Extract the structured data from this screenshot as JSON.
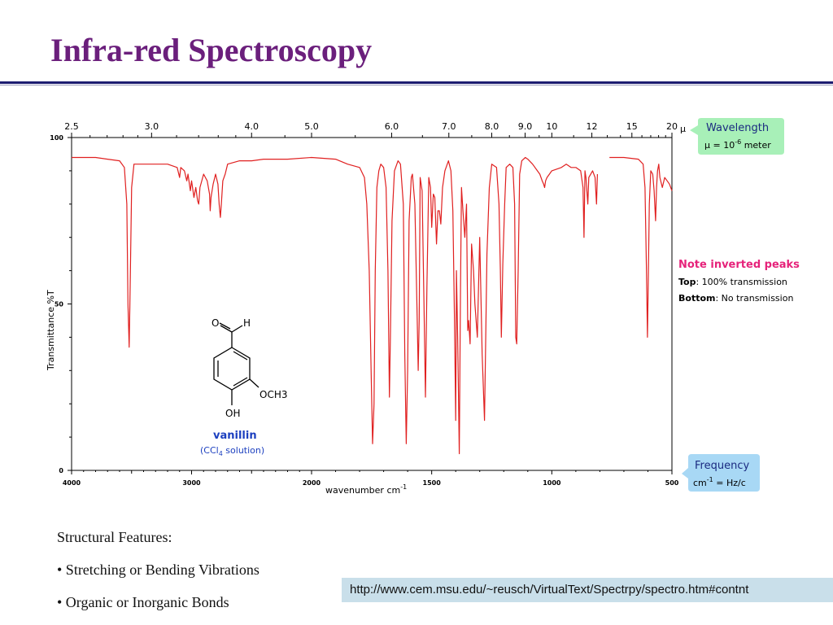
{
  "slide": {
    "title": "Infra-red Spectroscopy",
    "features_heading": "Structural Features:",
    "bullets": [
      "• Stretching or Bending Vibrations",
      "• Organic or Inorganic Bonds"
    ],
    "source_url": "http://www.cem.msu.edu/~reusch/VirtualText/Spectrpy/spectro.htm#contnt"
  },
  "colors": {
    "title": "#6b1f7c",
    "rule": "#1c1c70",
    "spectrum": "#e02020",
    "note": "#e6227a",
    "molecule_label": "#1b3fbf",
    "callout_green": "#a8f0b8",
    "callout_blue": "#a8d8f5",
    "url_box": "#c9dfea"
  },
  "notes": {
    "title": "Note inverted peaks",
    "top_label": "Top",
    "top_text": ": 100% transmission",
    "bottom_label": "Bottom",
    "bottom_text": ": No transmission"
  },
  "callouts": {
    "wavelength_title": "Wavelength",
    "wavelength_formula": "μ = 10",
    "wavelength_exp": "-6",
    "wavelength_unit": " meter",
    "frequency_title": "Frequency",
    "frequency_formula": "cm",
    "frequency_exp": "-1",
    "frequency_unit": " = Hz/c"
  },
  "molecule": {
    "name": "vanillin",
    "solvent_prefix": "(CCl",
    "solvent_sub": "4",
    "solvent_suffix": " solution)",
    "atom_o": "O",
    "atom_h": "H",
    "atom_och3": "OCH3",
    "atom_oh": "OH"
  },
  "chart_data": {
    "type": "line",
    "xlabel": "wavenumber cm",
    "xlabel_exp": "-1",
    "ylabel": "Transmittance %T",
    "xlim": [
      4000,
      500
    ],
    "ylim": [
      0,
      100
    ],
    "x_ticks": [
      4000,
      3000,
      2000,
      1500,
      1000,
      500
    ],
    "y_ticks": [
      0,
      50,
      100
    ],
    "top_axis_unit": "μ",
    "top_ticks": [
      {
        "label": "2.5",
        "um": 2.5
      },
      {
        "label": "3.0",
        "um": 3.0
      },
      {
        "label": "4.0",
        "um": 4.0
      },
      {
        "label": "5.0",
        "um": 5.0
      },
      {
        "label": "6.0",
        "um": 6.0
      },
      {
        "label": "7.0",
        "um": 7.0
      },
      {
        "label": "8.0",
        "um": 8.0
      },
      {
        "label": "9.0",
        "um": 9.0
      },
      {
        "label": "10",
        "um": 10
      },
      {
        "label": "12",
        "um": 12
      },
      {
        "label": "15",
        "um": 15
      },
      {
        "label": "20",
        "um": 20
      }
    ],
    "x_axis_note": "x axis is linear in wavenumber with a scale change at 2000 cm-1",
    "series": [
      {
        "segments": [
          [
            [
              4000,
              94
            ],
            [
              3900,
              94
            ],
            [
              3800,
              94
            ],
            [
              3700,
              93.5
            ],
            [
              3600,
              93
            ],
            [
              3560,
              91
            ],
            [
              3540,
              80
            ],
            [
              3530,
              50
            ],
            [
              3520,
              37
            ],
            [
              3512,
              55
            ],
            [
              3500,
              85
            ],
            [
              3480,
              92
            ],
            [
              3400,
              92
            ],
            [
              3300,
              92
            ],
            [
              3200,
              92
            ],
            [
              3120,
              91
            ],
            [
              3100,
              88
            ],
            [
              3090,
              91
            ],
            [
              3060,
              90
            ],
            [
              3040,
              87
            ],
            [
              3030,
              89
            ],
            [
              3010,
              84
            ],
            [
              3000,
              87
            ],
            [
              2980,
              82
            ],
            [
              2965,
              85
            ],
            [
              2950,
              81
            ],
            [
              2940,
              80
            ],
            [
              2930,
              85
            ],
            [
              2900,
              89
            ],
            [
              2870,
              87
            ],
            [
              2850,
              83
            ],
            [
              2845,
              78
            ],
            [
              2838,
              82
            ],
            [
              2820,
              86
            ],
            [
              2800,
              89
            ],
            [
              2780,
              86
            ],
            [
              2770,
              80
            ],
            [
              2760,
              76
            ],
            [
              2752,
              80
            ],
            [
              2740,
              87
            ],
            [
              2720,
              89
            ],
            [
              2700,
              92
            ],
            [
              2600,
              93
            ],
            [
              2500,
              93
            ],
            [
              2400,
              93.5
            ],
            [
              2300,
              93.5
            ],
            [
              2200,
              93.5
            ],
            [
              2000,
              94
            ],
            [
              1900,
              93.5
            ],
            [
              1850,
              92
            ],
            [
              1800,
              91
            ],
            [
              1780,
              88
            ],
            [
              1770,
              80
            ],
            [
              1760,
              60
            ],
            [
              1752,
              30
            ],
            [
              1746,
              8
            ],
            [
              1740,
              20
            ],
            [
              1735,
              60
            ],
            [
              1728,
              85
            ],
            [
              1720,
              90
            ],
            [
              1712,
              92
            ],
            [
              1700,
              91
            ],
            [
              1690,
              85
            ],
            [
              1682,
              60
            ],
            [
              1676,
              22
            ],
            [
              1672,
              40
            ],
            [
              1665,
              75
            ],
            [
              1655,
              90
            ],
            [
              1640,
              93
            ],
            [
              1630,
              92
            ],
            [
              1618,
              80
            ],
            [
              1612,
              35
            ],
            [
              1606,
              8
            ],
            [
              1600,
              30
            ],
            [
              1594,
              75
            ],
            [
              1585,
              88
            ],
            [
              1580,
              89
            ],
            [
              1570,
              80
            ],
            [
              1560,
              45
            ],
            [
              1556,
              30
            ],
            [
              1552,
              45
            ],
            [
              1548,
              88
            ],
            [
              1540,
              84
            ],
            [
              1532,
              50
            ],
            [
              1526,
              22
            ],
            [
              1520,
              55
            ],
            [
              1512,
              88
            ],
            [
              1505,
              85
            ],
            [
              1500,
              73
            ],
            [
              1493,
              83
            ],
            [
              1487,
              82
            ],
            [
              1480,
              68
            ],
            [
              1474,
              78
            ],
            [
              1468,
              78
            ],
            [
              1462,
              74
            ],
            [
              1455,
              85
            ],
            [
              1445,
              90
            ],
            [
              1430,
              93
            ],
            [
              1420,
              90
            ],
            [
              1412,
              78
            ],
            [
              1405,
              45
            ],
            [
              1400,
              15
            ],
            [
              1397,
              60
            ],
            [
              1392,
              40
            ],
            [
              1385,
              5
            ],
            [
              1380,
              55
            ],
            [
              1376,
              85
            ],
            [
              1370,
              78
            ],
            [
              1362,
              70
            ],
            [
              1355,
              80
            ],
            [
              1350,
              42
            ],
            [
              1346,
              45
            ],
            [
              1340,
              38
            ],
            [
              1334,
              68
            ],
            [
              1326,
              60
            ],
            [
              1320,
              50
            ],
            [
              1310,
              40
            ],
            [
              1300,
              70
            ],
            [
              1290,
              35
            ],
            [
              1280,
              15
            ],
            [
              1270,
              65
            ],
            [
              1260,
              85
            ],
            [
              1250,
              92
            ],
            [
              1230,
              91
            ],
            [
              1220,
              80
            ],
            [
              1214,
              60
            ],
            [
              1210,
              40
            ],
            [
              1204,
              62
            ],
            [
              1196,
              80
            ],
            [
              1190,
              91
            ],
            [
              1175,
              92
            ],
            [
              1162,
              91
            ],
            [
              1155,
              80
            ],
            [
              1150,
              40
            ],
            [
              1146,
              38
            ],
            [
              1140,
              60
            ],
            [
              1134,
              89
            ],
            [
              1125,
              93
            ],
            [
              1110,
              94
            ],
            [
              1100,
              93.5
            ],
            [
              1080,
              92
            ],
            [
              1060,
              90
            ],
            [
              1050,
              89
            ],
            [
              1040,
              87
            ],
            [
              1034,
              86
            ],
            [
              1030,
              85
            ],
            [
              1026,
              87
            ],
            [
              1020,
              88
            ],
            [
              1010,
              89
            ],
            [
              1000,
              90
            ],
            [
              960,
              91
            ],
            [
              940,
              92
            ],
            [
              920,
              91
            ],
            [
              900,
              91
            ],
            [
              880,
              90
            ],
            [
              870,
              85
            ],
            [
              866,
              70
            ],
            [
              862,
              90
            ],
            [
              858,
              88
            ],
            [
              850,
              80
            ],
            [
              846,
              88
            ],
            [
              830,
              90
            ],
            [
              820,
              88
            ],
            [
              814,
              80
            ],
            [
              810,
              89
            ]
          ],
          [
            [
              760,
              94
            ],
            [
              700,
              94
            ],
            [
              640,
              93.5
            ],
            [
              620,
              92
            ],
            [
              612,
              85
            ],
            [
              606,
              60
            ],
            [
              602,
              40
            ],
            [
              598,
              60
            ],
            [
              594,
              80
            ],
            [
              588,
              90
            ],
            [
              580,
              89
            ],
            [
              574,
              84
            ],
            [
              568,
              75
            ],
            [
              564,
              85
            ],
            [
              560,
              90
            ],
            [
              555,
              92
            ],
            [
              550,
              88
            ],
            [
              540,
              85
            ],
            [
              530,
              88
            ],
            [
              520,
              87
            ],
            [
              510,
              86
            ],
            [
              500,
              84
            ]
          ]
        ]
      }
    ]
  }
}
